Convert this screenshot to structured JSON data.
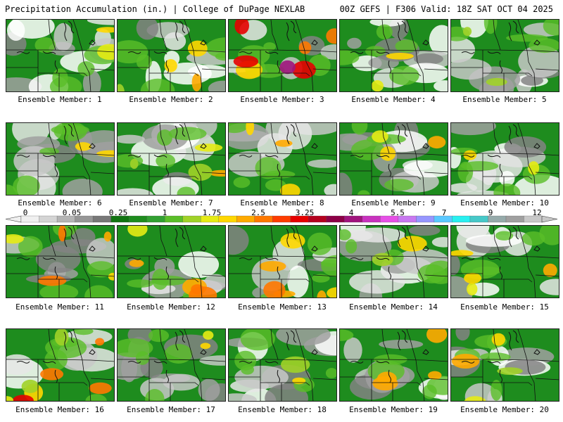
{
  "header": {
    "left_title": "Precipitation Accumulation (in.) | College of DuPage NEXLAB",
    "right_title": "00Z GEFS | F306 Valid: 18Z SAT OCT 04 2025"
  },
  "panels": [
    {
      "label": "Ensemble Member: 1",
      "intensity": 0.2
    },
    {
      "label": "Ensemble Member: 2",
      "intensity": 0.55
    },
    {
      "label": "Ensemble Member: 3",
      "intensity": 0.85
    },
    {
      "label": "Ensemble Member: 4",
      "intensity": 0.25
    },
    {
      "label": "Ensemble Member: 5",
      "intensity": 0.2
    },
    {
      "label": "Ensemble Member: 6",
      "intensity": 0.3
    },
    {
      "label": "Ensemble Member: 7",
      "intensity": 0.45
    },
    {
      "label": "Ensemble Member: 8",
      "intensity": 0.4
    },
    {
      "label": "Ensemble Member: 9",
      "intensity": 0.35
    },
    {
      "label": "Ensemble Member: 10",
      "intensity": 0.2
    },
    {
      "label": "Ensemble Member: 11",
      "intensity": 0.6
    },
    {
      "label": "Ensemble Member: 12",
      "intensity": 0.6
    },
    {
      "label": "Ensemble Member: 13",
      "intensity": 0.7
    },
    {
      "label": "Ensemble Member: 14",
      "intensity": 0.3
    },
    {
      "label": "Ensemble Member: 15",
      "intensity": 0.45
    },
    {
      "label": "Ensemble Member: 16",
      "intensity": 0.95
    },
    {
      "label": "Ensemble Member: 17",
      "intensity": 0.25
    },
    {
      "label": "Ensemble Member: 18",
      "intensity": 0.3
    },
    {
      "label": "Ensemble Member: 19",
      "intensity": 0.55
    },
    {
      "label": "Ensemble Member: 20",
      "intensity": 0.45
    }
  ],
  "colorbar": {
    "labels": [
      "0",
      "0.05",
      "0.25",
      "1",
      "1.75",
      "2.5",
      "3.25",
      "4",
      "5.5",
      "7",
      "9",
      "12"
    ],
    "colors": [
      "#f0f0f0",
      "#d4d4d4",
      "#b4b4b4",
      "#969696",
      "#787878",
      "#127412",
      "#1e8c1e",
      "#32a032",
      "#5abe28",
      "#a0d228",
      "#e6eb14",
      "#ffd700",
      "#ffaa00",
      "#ff7800",
      "#ff3c00",
      "#e60000",
      "#b4001e",
      "#8c0046",
      "#a0147d",
      "#c832be",
      "#e650e6",
      "#c878f0",
      "#9696ff",
      "#5ac8ff",
      "#28f0f0",
      "#46c8c8",
      "#96aaaa",
      "#a0a0a0",
      "#c8c8c8"
    ]
  }
}
